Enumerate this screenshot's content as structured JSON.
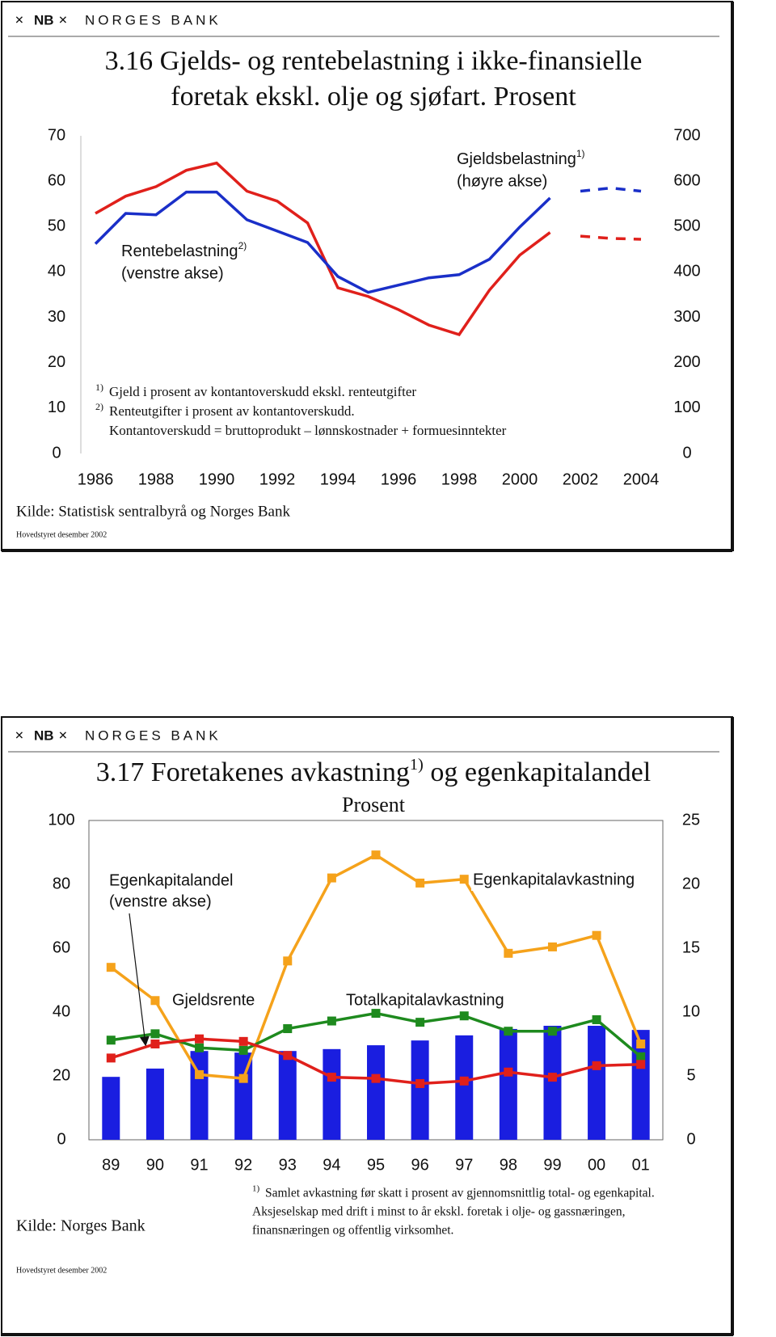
{
  "chart_data": [
    {
      "type": "line",
      "logo_mark": "NB",
      "logo": "NORGES BANK",
      "title": [
        "3.16 Gjelds- og rentebelastning i ikke-finansielle",
        "foretak ekskl. olje og sjøfart. Prosent"
      ],
      "x": [
        1986,
        1987,
        1988,
        1989,
        1990,
        1991,
        1992,
        1993,
        1994,
        1995,
        1996,
        1997,
        1998,
        1999,
        2000,
        2001,
        2002,
        2003,
        2004
      ],
      "xlim": [
        1986,
        2004
      ],
      "xticks": [
        1986,
        1988,
        1990,
        1992,
        1994,
        1996,
        1998,
        2000,
        2002,
        2004
      ],
      "ylim": [
        0,
        70
      ],
      "yticks": [
        0,
        10,
        20,
        30,
        40,
        50,
        60,
        70
      ],
      "y2lim": [
        0,
        700
      ],
      "y2ticks": [
        0,
        100,
        200,
        300,
        400,
        500,
        600,
        700
      ],
      "series": [
        {
          "name": "Rentebelastning",
          "name_sup": "2)",
          "axis_note": "(venstre akse)",
          "color": "#e0201b",
          "values": [
            52.9,
            56.7,
            58.8,
            62.4,
            64.0,
            57.8,
            55.6,
            50.8,
            36.5,
            34.6,
            31.7,
            28.3,
            26.2,
            36.0,
            43.7,
            48.7,
            null,
            null,
            null
          ]
        },
        {
          "color": "#e0201b",
          "dashed": true,
          "values": [
            null,
            null,
            null,
            null,
            null,
            null,
            null,
            null,
            null,
            null,
            null,
            null,
            null,
            null,
            null,
            null,
            47.9,
            47.4,
            47.2
          ]
        },
        {
          "name": "Gjeldsbelastning",
          "name_sup": "1)",
          "axis_note": "(høyre akse)",
          "color": "#1a2fc8",
          "axis": "y2",
          "values": [
            462,
            529,
            526,
            576,
            576,
            515,
            490,
            465,
            390,
            355,
            371,
            387,
            394,
            428,
            499,
            563,
            null,
            null,
            null
          ]
        },
        {
          "color": "#1a2fc8",
          "dashed": true,
          "axis": "y2",
          "values": [
            null,
            null,
            null,
            null,
            null,
            null,
            null,
            null,
            null,
            null,
            null,
            null,
            null,
            null,
            null,
            null,
            578,
            585,
            578
          ]
        }
      ],
      "footnotes": [
        {
          "mark": "1)",
          "text": "Gjeld i prosent av kontantoverskudd ekskl. renteutgifter"
        },
        {
          "mark": "2)",
          "text": "Renteutgifter i prosent av kontantoverskudd."
        },
        {
          "text": "Kontantoverskudd = bruttoprodukt – lønnskostnader +  formuesinntekter"
        }
      ],
      "source": "Kilde: Statistisk sentralbyrå og Norges Bank",
      "stamp": "Hovedstyret desember 2002"
    },
    {
      "type": "bar_line",
      "logo_mark": "NB",
      "logo": "NORGES BANK",
      "title": "3.17 Foretakenes avkastning",
      "title_sup": "1)",
      "title_end": " og egenkapitalandel",
      "subtitle": "Prosent",
      "categories": [
        "89",
        "90",
        "91",
        "92",
        "93",
        "94",
        "95",
        "96",
        "97",
        "98",
        "99",
        "00",
        "01"
      ],
      "ylim": [
        0,
        100
      ],
      "yticks": [
        0,
        20,
        40,
        60,
        80,
        100
      ],
      "y2lim": [
        0,
        25
      ],
      "y2ticks": [
        0,
        5,
        10,
        15,
        20,
        25
      ],
      "series": [
        {
          "type": "bar",
          "name": "Egenkapitalandel",
          "axis_note": "(venstre akse)",
          "color": "#1a1ee0",
          "values": [
            19.7,
            22.3,
            27.8,
            27.3,
            27.8,
            28.4,
            29.6,
            31.1,
            32.7,
            34.7,
            35.7,
            35.7,
            34.4
          ]
        },
        {
          "type": "line",
          "name": "Egenkapitalavkastning",
          "color": "#f5a21b",
          "axis": "y2",
          "values": [
            13.5,
            10.9,
            5.1,
            4.8,
            14.0,
            20.5,
            22.3,
            20.1,
            20.4,
            14.6,
            15.1,
            16.0,
            7.5
          ]
        },
        {
          "type": "line",
          "name": "Totalkapitalavkastning",
          "color": "#1e8a1e",
          "axis": "y2",
          "values": [
            7.8,
            8.3,
            7.2,
            7.0,
            8.7,
            9.3,
            9.9,
            9.2,
            9.7,
            8.5,
            8.5,
            9.4,
            6.5
          ]
        },
        {
          "type": "line",
          "name": "Gjeldsrente",
          "color": "#e0201b",
          "axis": "y2",
          "values": [
            6.4,
            7.5,
            7.9,
            7.7,
            6.6,
            4.9,
            4.8,
            4.4,
            4.6,
            5.3,
            4.9,
            5.8,
            5.9
          ]
        }
      ],
      "footnotes": [
        {
          "mark": "1)",
          "text": "Samlet avkastning før skatt i prosent av gjennomsnittlig total- og egenkapital."
        },
        {
          "text": "Aksjeselskap med drift i minst to år ekskl. foretak i olje- og gassnæringen,"
        },
        {
          "text": "finansnæringen og offentlig virksomhet."
        }
      ],
      "source": "Kilde: Norges Bank",
      "stamp": "Hovedstyret desember 2002"
    }
  ]
}
